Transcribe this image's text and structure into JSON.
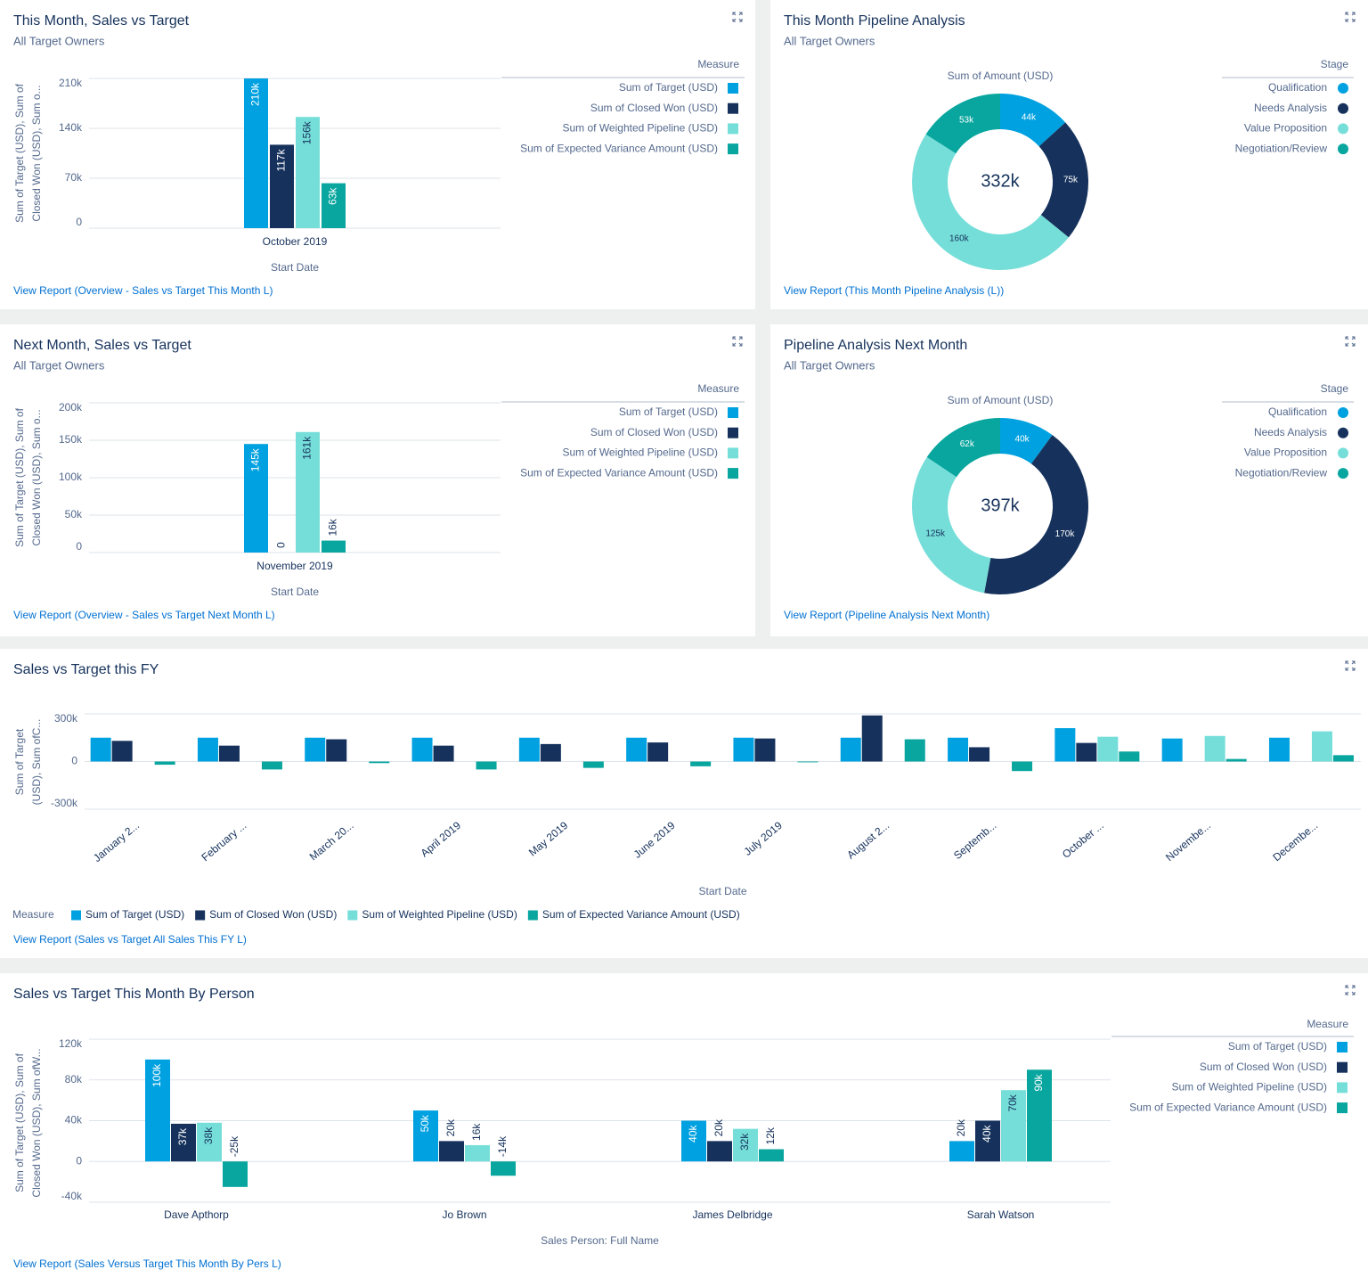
{
  "chart_data": [
    {
      "type": "bar",
      "title": "This Month, Sales vs Target",
      "subtitle": "All Target Owners",
      "ylabel": "Sum of Target (USD), Sum of Closed Won (USD), Sum o...",
      "xlabel": "Start Date",
      "categories": [
        "October 2019"
      ],
      "series": [
        {
          "name": "Sum of Target (USD)",
          "color": "#00a1e0",
          "values": [
            210000
          ],
          "value_labels": [
            "210k"
          ]
        },
        {
          "name": "Sum of Closed Won (USD)",
          "color": "#16325c",
          "values": [
            117000
          ],
          "value_labels": [
            "117k"
          ]
        },
        {
          "name": "Sum of Weighted Pipeline (USD)",
          "color": "#76ded9",
          "values": [
            156000
          ],
          "value_labels": [
            "156k"
          ]
        },
        {
          "name": "Sum of Expected Variance Amount (USD)",
          "color": "#08a69e",
          "values": [
            63000
          ],
          "value_labels": [
            "63k"
          ]
        }
      ],
      "ylim": [
        0,
        210000
      ],
      "yticks": [
        0,
        {
          "value": 70000,
          "label": "70k"
        },
        {
          "value": 140000,
          "label": "140k"
        },
        {
          "value": 210000,
          "label": "210k"
        }
      ],
      "legend_title": "Measure",
      "legend_position": "right",
      "link": "View Report (Overview - Sales vs Target This Month L)"
    },
    {
      "type": "donut",
      "title": "This Month Pipeline Analysis",
      "subtitle": "All Target Owners",
      "measure": "Sum of Amount (USD)",
      "categories": [
        "Qualification",
        "Needs Analysis",
        "Value Proposition",
        "Negotiation/Review"
      ],
      "colors": [
        "#00a1e0",
        "#16325c",
        "#76ded9",
        "#08a69e"
      ],
      "values": [
        44000,
        75000,
        160000,
        53000
      ],
      "value_labels": [
        "44k",
        "75k",
        "160k",
        "53k"
      ],
      "total": {
        "value": 332000,
        "label": "332k"
      },
      "legend_title": "Stage",
      "legend_position": "right",
      "link": "View Report (This Month Pipeline Analysis (L))"
    },
    {
      "type": "bar",
      "title": "Next Month, Sales vs Target",
      "subtitle": "All Target Owners",
      "ylabel": "Sum of Target (USD), Sum of Closed Won (USD), Sum o...",
      "xlabel": "Start Date",
      "categories": [
        "November 2019"
      ],
      "series": [
        {
          "name": "Sum of Target (USD)",
          "color": "#00a1e0",
          "values": [
            145000
          ],
          "value_labels": [
            "145k"
          ]
        },
        {
          "name": "Sum of Closed Won (USD)",
          "color": "#16325c",
          "values": [
            0
          ],
          "value_labels": [
            "0"
          ]
        },
        {
          "name": "Sum of Weighted Pipeline (USD)",
          "color": "#76ded9",
          "values": [
            161000
          ],
          "value_labels": [
            "161k"
          ]
        },
        {
          "name": "Sum of Expected Variance Amount (USD)",
          "color": "#08a69e",
          "values": [
            16000
          ],
          "value_labels": [
            "16k"
          ]
        }
      ],
      "ylim": [
        0,
        200000
      ],
      "yticks": [
        0,
        {
          "value": 50000,
          "label": "50k"
        },
        {
          "value": 100000,
          "label": "100k"
        },
        {
          "value": 150000,
          "label": "150k"
        },
        {
          "value": 200000,
          "label": "200k"
        }
      ],
      "legend_title": "Measure",
      "legend_position": "right",
      "link": "View Report (Overview - Sales vs Target Next Month L)"
    },
    {
      "type": "donut",
      "title": "Pipeline Analysis Next Month",
      "subtitle": "All Target Owners",
      "measure": "Sum of Amount (USD)",
      "categories": [
        "Qualification",
        "Needs Analysis",
        "Value Proposition",
        "Negotiation/Review"
      ],
      "colors": [
        "#00a1e0",
        "#16325c",
        "#76ded9",
        "#08a69e"
      ],
      "values": [
        40000,
        170000,
        125000,
        62000
      ],
      "value_labels": [
        "40k",
        "170k",
        "125k",
        "62k"
      ],
      "total": {
        "value": 397000,
        "label": "397k"
      },
      "legend_title": "Stage",
      "legend_position": "right",
      "link": "View Report (Pipeline Analysis Next Month)"
    },
    {
      "type": "bar",
      "title": "Sales vs Target this FY",
      "ylabel": "Sum of Target (USD), Sum ofC...",
      "xlabel": "Start Date",
      "categories": [
        "January 2...",
        "February ...",
        "March 20...",
        "April 2019",
        "May 2019",
        "June 2019",
        "July 2019",
        "August 2...",
        "Septemb...",
        "October ...",
        "Novembe...",
        "Decembe..."
      ],
      "series": [
        {
          "name": "Sum of Target (USD)",
          "color": "#00a1e0",
          "values": [
            150000,
            150000,
            150000,
            150000,
            150000,
            150000,
            150000,
            150000,
            150000,
            210000,
            145000,
            150000
          ]
        },
        {
          "name": "Sum of Closed Won (USD)",
          "color": "#16325c",
          "values": [
            130000,
            100000,
            140000,
            100000,
            110000,
            120000,
            145000,
            290000,
            90000,
            117000,
            0,
            null
          ]
        },
        {
          "name": "Sum of Weighted Pipeline (USD)",
          "color": "#76ded9",
          "values": [
            null,
            null,
            null,
            null,
            null,
            null,
            null,
            null,
            null,
            156000,
            161000,
            190000
          ]
        },
        {
          "name": "Sum of Expected Variance Amount (USD)",
          "color": "#08a69e",
          "values": [
            -20000,
            -50000,
            -10000,
            -50000,
            -40000,
            -30000,
            -5000,
            140000,
            -60000,
            63000,
            16000,
            40000
          ]
        }
      ],
      "ylim": [
        -300000,
        300000
      ],
      "yticks": [
        {
          "value": -300000,
          "label": "-300k"
        },
        0,
        {
          "value": 300000,
          "label": "300k"
        }
      ],
      "legend_title": "Measure",
      "legend_position": "bottom",
      "link": "View Report (Sales vs Target All Sales This FY L)"
    },
    {
      "type": "bar",
      "title": "Sales vs Target This Month By Person",
      "ylabel": "Sum of Target (USD), Sum of Closed Won (USD), Sum ofW...",
      "xlabel": "Sales Person: Full Name",
      "categories": [
        "Dave Apthorp",
        "Jo Brown",
        "James Delbridge",
        "Sarah Watson"
      ],
      "series": [
        {
          "name": "Sum of Target (USD)",
          "color": "#00a1e0",
          "values": [
            100000,
            50000,
            40000,
            20000
          ],
          "value_labels": [
            "100k",
            "50k",
            "40k",
            "20k"
          ]
        },
        {
          "name": "Sum of Closed Won (USD)",
          "color": "#16325c",
          "values": [
            37000,
            20000,
            20000,
            40000
          ],
          "value_labels": [
            "37k",
            "20k",
            "20k",
            "40k"
          ]
        },
        {
          "name": "Sum of Weighted Pipeline (USD)",
          "color": "#76ded9",
          "values": [
            38000,
            16000,
            32000,
            70000
          ],
          "value_labels": [
            "38k",
            "16k",
            "32k",
            "70k"
          ]
        },
        {
          "name": "Sum of Expected Variance Amount (USD)",
          "color": "#08a69e",
          "values": [
            -25000,
            -14000,
            12000,
            90000
          ],
          "value_labels": [
            "-25k",
            "-14k",
            "12k",
            "90k"
          ]
        }
      ],
      "ylim": [
        -40000,
        120000
      ],
      "yticks": [
        {
          "value": -40000,
          "label": "-40k"
        },
        0,
        {
          "value": 40000,
          "label": "40k"
        },
        {
          "value": 80000,
          "label": "80k"
        },
        {
          "value": 120000,
          "label": "120k"
        }
      ],
      "legend_title": "Measure",
      "legend_position": "right",
      "link": "View Report (Sales Versus Target This Month By Pers L)"
    }
  ]
}
